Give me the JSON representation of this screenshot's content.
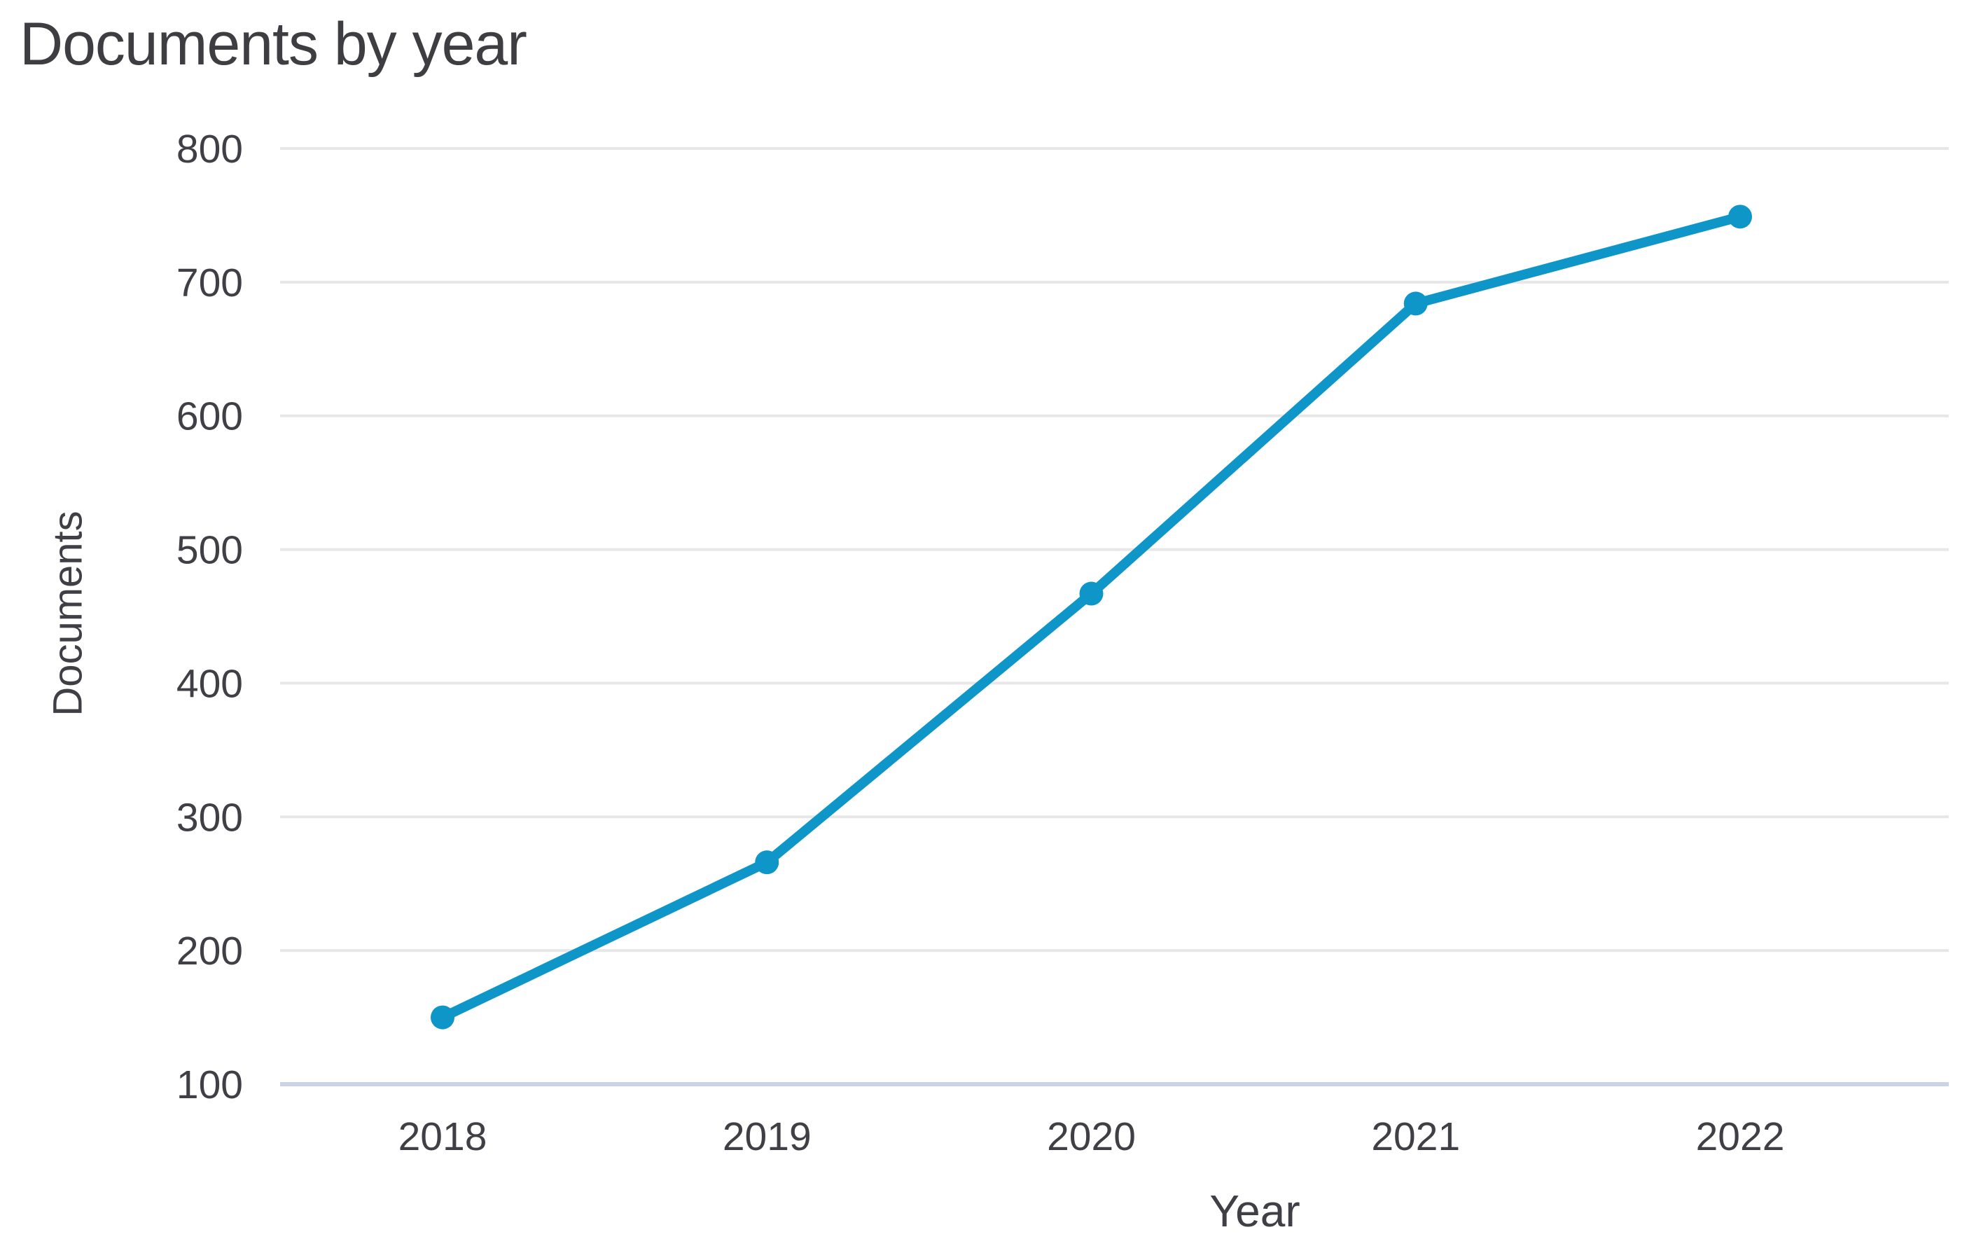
{
  "chart_data": {
    "type": "line",
    "title": "Documents by year",
    "xlabel": "Year",
    "ylabel": "Documents",
    "categories": [
      "2018",
      "2019",
      "2020",
      "2021",
      "2022"
    ],
    "series": [
      {
        "name": "Documents",
        "values": [
          150,
          266,
          467,
          684,
          749
        ]
      }
    ],
    "ylim": [
      100,
      800
    ],
    "yticks": [
      100,
      200,
      300,
      400,
      500,
      600,
      700,
      800
    ],
    "grid": "horizontal",
    "legend": "none",
    "colors": {
      "line": "#0e96c8",
      "marker": "#0e96c8",
      "gridline": "#e7e7e7",
      "axis_baseline": "#cbd3e9",
      "text": "#3f3f45"
    }
  }
}
